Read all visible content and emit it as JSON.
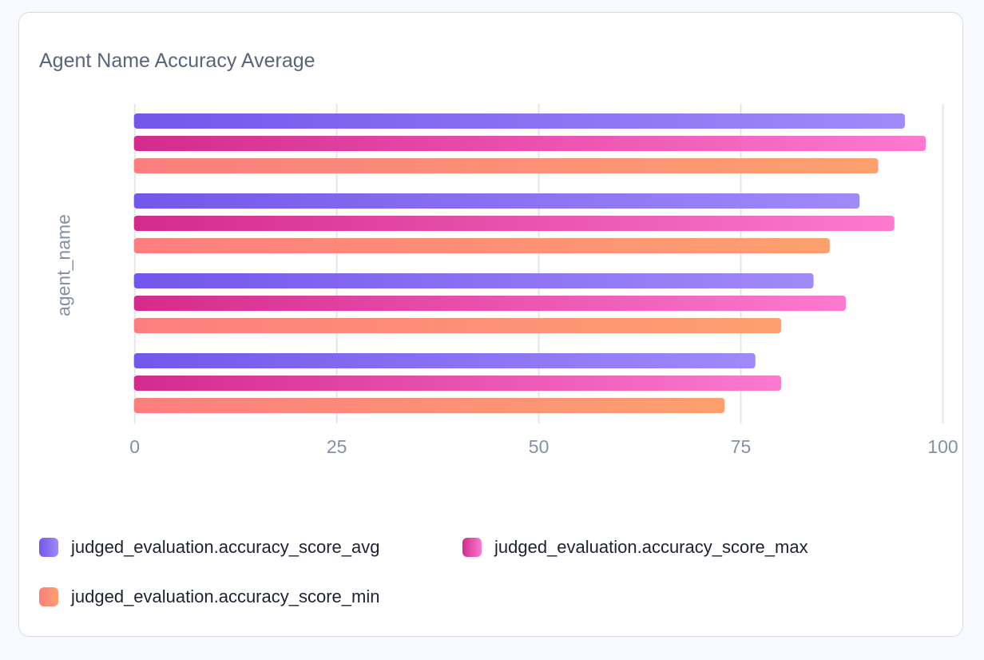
{
  "chart_data": {
    "type": "bar",
    "orientation": "horizontal",
    "title": "Agent Name Accuracy Average",
    "ylabel": "agent_name",
    "xlabel": "",
    "xlim": [
      0,
      100
    ],
    "xticks": [
      "0",
      "25",
      "50",
      "75",
      "100"
    ],
    "grid": true,
    "legend_position": "bottom",
    "categories": [
      "",
      "",
      "",
      ""
    ],
    "series": [
      {
        "name": "judged_evaluation.accuracy_score_avg",
        "values": [
          95.3,
          89.7,
          84.0,
          76.8
        ],
        "colors": [
          "#7357eb",
          "#a08af9"
        ]
      },
      {
        "name": "judged_evaluation.accuracy_score_max",
        "values": [
          97.9,
          94.0,
          88.0,
          80.0
        ],
        "colors": [
          "#d42a8e",
          "#fc7ad0"
        ]
      },
      {
        "name": "judged_evaluation.accuracy_score_min",
        "values": [
          92.0,
          86.0,
          80.0,
          73.0
        ],
        "colors": [
          "#fd7e7e",
          "#fda06e"
        ]
      }
    ]
  }
}
